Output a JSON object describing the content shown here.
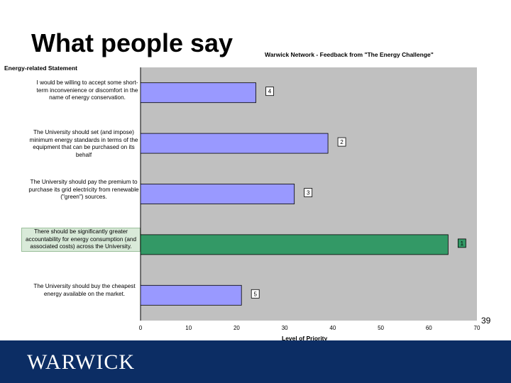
{
  "slide": {
    "title": "What people say",
    "page_number": "39",
    "logo_text": "WARWICK"
  },
  "colors": {
    "plot_background": "#c0c0c0",
    "bar_default": "#9999ff",
    "bar_highlight": "#339966",
    "footer": "#0c2d64"
  },
  "chart_data": {
    "type": "bar",
    "orientation": "horizontal",
    "title": "Warwick Network - Feedback from \"The Energy Challenge\"",
    "ylabel": "Energy-related Statement",
    "xlabel": "Level of Priority",
    "xlim": [
      0,
      70
    ],
    "xticks": [
      "0",
      "10",
      "20",
      "30",
      "40",
      "50",
      "60",
      "70"
    ],
    "grid": false,
    "categories": [
      "I would be willing to accept some short-term inconvenience or discomfort in the name of energy conservation.",
      "The University should set (and impose) minimum energy standards in terms of the equipment that can be purchased on its behalf",
      "The University should pay the premium to purchase its grid electricity from renewable (\"green\") sources.",
      "There should be significantly greater accountability for energy consumption (and associated costs) across the University.",
      "The University should buy the cheapest energy available on the market."
    ],
    "values": [
      24,
      39,
      32,
      64,
      21
    ],
    "rank_labels": [
      "4",
      "2",
      "3",
      "1",
      "5"
    ],
    "highlight_index": 3
  }
}
